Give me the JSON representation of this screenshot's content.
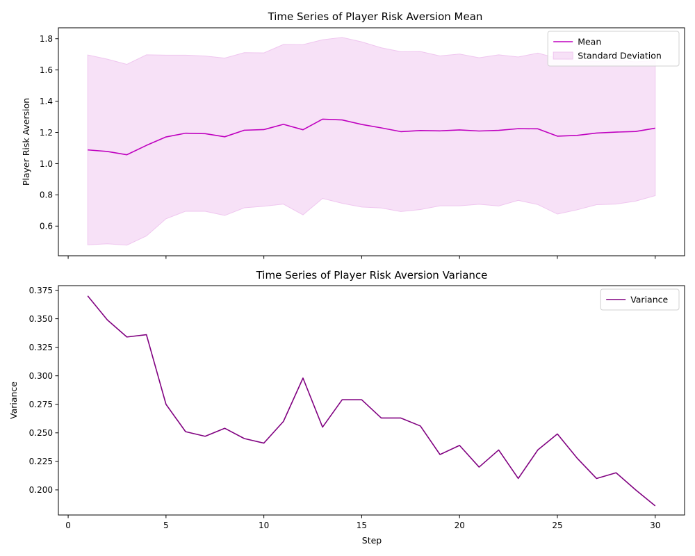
{
  "chart_data": [
    {
      "type": "line",
      "title": "Time Series of Player Risk Aversion Mean",
      "xlabel": "",
      "ylabel": "Player Risk Aversion",
      "xlim": [
        -0.5,
        31.5
      ],
      "ylim": [
        0.41,
        1.87
      ],
      "x": [
        1,
        2,
        3,
        4,
        5,
        6,
        7,
        8,
        9,
        10,
        11,
        12,
        13,
        14,
        15,
        16,
        17,
        18,
        19,
        20,
        21,
        22,
        23,
        24,
        25,
        26,
        27,
        28,
        29,
        30
      ],
      "xticks": [
        0,
        5,
        10,
        15,
        20,
        25,
        30
      ],
      "xtick_labels_visible": false,
      "yticks": [
        0.6,
        0.8,
        1.0,
        1.2,
        1.4,
        1.6,
        1.8
      ],
      "ytick_labels": [
        "0.6",
        "0.8",
        "1.0",
        "1.2",
        "1.4",
        "1.6",
        "1.8"
      ],
      "grid": false,
      "legend_position": "top-right",
      "series": [
        {
          "name": "Mean",
          "kind": "line",
          "color": "#bf00bf",
          "values": [
            1.088,
            1.078,
            1.057,
            1.117,
            1.171,
            1.195,
            1.192,
            1.172,
            1.214,
            1.218,
            1.252,
            1.217,
            1.285,
            1.28,
            1.251,
            1.229,
            1.205,
            1.212,
            1.21,
            1.216,
            1.209,
            1.213,
            1.224,
            1.223,
            1.176,
            1.181,
            1.196,
            1.202,
            1.206,
            1.227
          ]
        },
        {
          "name": "Standard Deviation",
          "kind": "band",
          "color": "#f7e1f7",
          "edge_color": "#efc6ef",
          "lower": [
            0.48,
            0.487,
            0.478,
            0.537,
            0.647,
            0.695,
            0.695,
            0.668,
            0.717,
            0.727,
            0.741,
            0.672,
            0.777,
            0.746,
            0.722,
            0.716,
            0.693,
            0.706,
            0.73,
            0.73,
            0.74,
            0.729,
            0.765,
            0.738,
            0.677,
            0.704,
            0.737,
            0.741,
            0.76,
            0.795
          ],
          "upper": [
            1.696,
            1.669,
            1.636,
            1.697,
            1.695,
            1.695,
            1.689,
            1.676,
            1.711,
            1.709,
            1.763,
            1.762,
            1.793,
            1.808,
            1.78,
            1.742,
            1.717,
            1.718,
            1.69,
            1.702,
            1.678,
            1.697,
            1.683,
            1.708,
            1.675,
            1.658,
            1.655,
            1.663,
            1.652,
            1.659
          ]
        }
      ]
    },
    {
      "type": "line",
      "title": "Time Series of Player Risk Aversion Variance",
      "xlabel": "Step",
      "ylabel": "Variance",
      "xlim": [
        -0.5,
        31.5
      ],
      "ylim": [
        0.178,
        0.379
      ],
      "x": [
        1,
        2,
        3,
        4,
        5,
        6,
        7,
        8,
        9,
        10,
        11,
        12,
        13,
        14,
        15,
        16,
        17,
        18,
        19,
        20,
        21,
        22,
        23,
        24,
        25,
        26,
        27,
        28,
        29,
        30
      ],
      "xticks": [
        0,
        5,
        10,
        15,
        20,
        25,
        30
      ],
      "xtick_labels": [
        "0",
        "5",
        "10",
        "15",
        "20",
        "25",
        "30"
      ],
      "yticks": [
        0.2,
        0.225,
        0.25,
        0.275,
        0.3,
        0.325,
        0.35,
        0.375
      ],
      "ytick_labels": [
        "0.200",
        "0.225",
        "0.250",
        "0.275",
        "0.300",
        "0.325",
        "0.350",
        "0.375"
      ],
      "grid": false,
      "legend_position": "top-right",
      "series": [
        {
          "name": "Variance",
          "kind": "line",
          "color": "#800080",
          "values": [
            0.37,
            0.349,
            0.334,
            0.336,
            0.275,
            0.251,
            0.247,
            0.254,
            0.245,
            0.241,
            0.26,
            0.298,
            0.255,
            0.279,
            0.279,
            0.263,
            0.263,
            0.256,
            0.231,
            0.239,
            0.22,
            0.235,
            0.21,
            0.235,
            0.249,
            0.228,
            0.21,
            0.215,
            0.2,
            0.186
          ]
        }
      ]
    }
  ]
}
